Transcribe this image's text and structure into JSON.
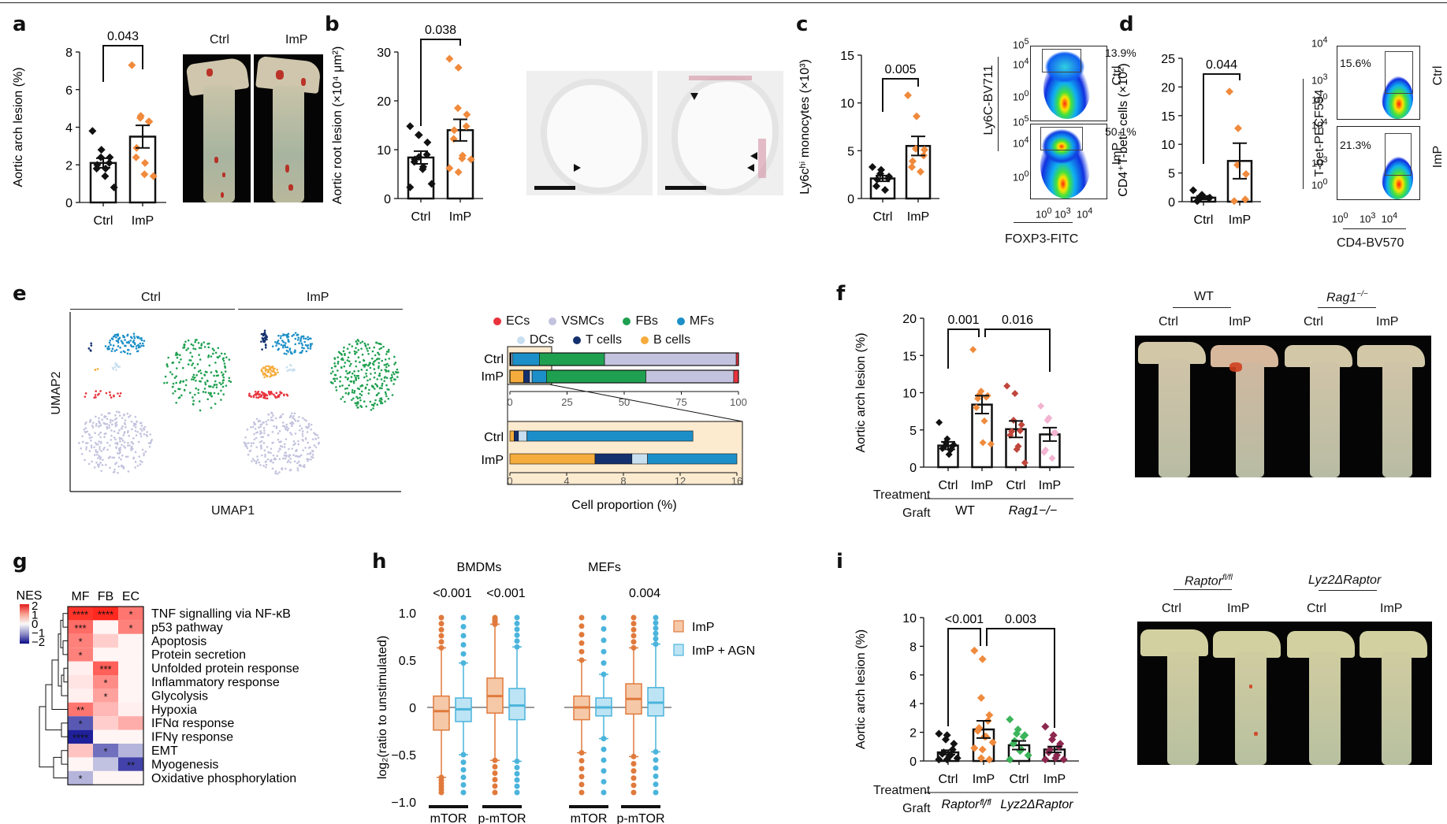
{
  "figure": {
    "panels": [
      "a",
      "b",
      "c",
      "d",
      "e",
      "f",
      "g",
      "h",
      "i"
    ]
  },
  "panel_a": {
    "label": "a",
    "photo_labels": [
      "Ctrl",
      "ImP"
    ]
  },
  "panel_b": {
    "label": "b"
  },
  "panel_c": {
    "label": "c",
    "flow": {
      "y_axis": "Ly6C-BV711",
      "x_axis": "FOXP3-FITC",
      "y_ticks": [
        "10^5",
        "10^4",
        "10^0"
      ],
      "x_ticks": [
        "10^0",
        "10^3",
        "10^4"
      ],
      "rows": [
        {
          "group": "Ctrl",
          "gate_pct": "13.9%"
        },
        {
          "group": "ImP",
          "gate_pct": "50.1%"
        }
      ]
    }
  },
  "panel_d": {
    "label": "d",
    "flow": {
      "y_axis": "T-bet-PECF594",
      "x_axis": "CD4-BV570",
      "y_ticks": [
        "10^4",
        "10^3",
        "10^0"
      ],
      "x_ticks": [
        "10^0",
        "10^3",
        "10^4"
      ],
      "rows": [
        {
          "group": "Ctrl",
          "gate_pct": "15.6%"
        },
        {
          "group": "ImP",
          "gate_pct": "21.3%"
        }
      ]
    }
  },
  "panel_e": {
    "label": "e",
    "umap_groups": [
      "Ctrl",
      "ImP"
    ],
    "umap_xlabel": "UMAP1",
    "umap_ylabel": "UMAP2",
    "legend": [
      {
        "name": "ECs",
        "color": "#e8323c"
      },
      {
        "name": "VSMCs",
        "color": "#c3c3df"
      },
      {
        "name": "FBs",
        "color": "#1fa050"
      },
      {
        "name": "MFs",
        "color": "#1c8fc8"
      },
      {
        "name": "DCs",
        "color": "#c8dff0"
      },
      {
        "name": "T cells",
        "color": "#14306e"
      },
      {
        "name": "B cells",
        "color": "#f5ac3c"
      }
    ]
  },
  "panel_f": {
    "label": "f",
    "row_labels": {
      "treatment": "Treatment",
      "graft": "Graft"
    },
    "photo_groups": [
      {
        "name": "WT",
        "italic": false,
        "sup": ""
      },
      {
        "name": "Rag1",
        "italic": true,
        "sup": "−/−"
      }
    ],
    "photo_labels": [
      "Ctrl",
      "ImP",
      "Ctrl",
      "ImP"
    ]
  },
  "panel_g": {
    "label": "g"
  },
  "panel_h": {
    "label": "h"
  },
  "panel_i": {
    "label": "i",
    "row_labels": {
      "treatment": "Treatment",
      "graft": "Graft"
    },
    "photo_groups": [
      {
        "name": "Raptor",
        "sup": "fl/fl"
      },
      {
        "name": "Lyz2ΔRaptor",
        "sup": ""
      }
    ],
    "photo_labels": [
      "Ctrl",
      "ImP",
      "Ctrl",
      "ImP"
    ]
  },
  "chart_data": [
    {
      "id": "a",
      "type": "bar",
      "ylabel": "Aortic arch lesion (%)",
      "ylim": [
        0,
        8
      ],
      "yticks": [
        0,
        2,
        4,
        6,
        8
      ],
      "categories": [
        "Ctrl",
        "ImP"
      ],
      "values": [
        2.1,
        3.5
      ],
      "sem": [
        0.25,
        0.6
      ],
      "points": [
        [
          3.8,
          2.8,
          2.4,
          2.4,
          2.1,
          2.0,
          1.8,
          1.8,
          1.4,
          0.8
        ],
        [
          7.3,
          4.6,
          4.5,
          4.3,
          4.3,
          2.9,
          2.4,
          2.1,
          1.5,
          1.4
        ]
      ],
      "point_colors": [
        "#111111",
        "#f08a3c"
      ],
      "comparisons": [
        {
          "from": "Ctrl",
          "to": "ImP",
          "p": "0.043"
        }
      ]
    },
    {
      "id": "b",
      "type": "bar",
      "ylabel": "Aortic root lesion (×10⁴ μm²)",
      "ylim": [
        0,
        30
      ],
      "yticks": [
        0,
        10,
        20,
        30
      ],
      "categories": [
        "Ctrl",
        "ImP"
      ],
      "values": [
        8.4,
        14.0
      ],
      "sem": [
        1.3,
        2.2
      ],
      "points": [
        [
          14.8,
          13.0,
          13.0,
          11.5,
          9.0,
          8.0,
          7.5,
          6.5,
          6.0,
          3.0,
          2.3,
          8.5
        ],
        [
          28.6,
          26.8,
          18.5,
          17.2,
          14.8,
          14.0,
          12.2,
          8.8,
          8.2,
          8.0,
          6.2,
          5.4
        ]
      ],
      "point_colors": [
        "#111111",
        "#f08a3c"
      ],
      "comparisons": [
        {
          "from": "Ctrl",
          "to": "ImP",
          "p": "0.038"
        }
      ]
    },
    {
      "id": "c",
      "type": "bar",
      "ylabel": "Ly6c^hi monocytes (×10³)",
      "ylim": [
        0,
        15
      ],
      "yticks": [
        0,
        5,
        10,
        15
      ],
      "categories": [
        "Ctrl",
        "ImP"
      ],
      "values": [
        2.1,
        5.5
      ],
      "sem": [
        0.3,
        1.0
      ],
      "points": [
        [
          3.3,
          3.0,
          2.6,
          2.3,
          2.1,
          2.0,
          1.3,
          0.9
        ],
        [
          10.8,
          8.6,
          5.2,
          5.1,
          4.5,
          3.9,
          3.3,
          2.8
        ]
      ],
      "point_colors": [
        "#111111",
        "#f08a3c"
      ],
      "comparisons": [
        {
          "from": "Ctrl",
          "to": "ImP",
          "p": "0.005"
        }
      ]
    },
    {
      "id": "d",
      "type": "bar",
      "ylabel": "CD4⁺T-bet⁺ cells (×10²)",
      "ylim": [
        0,
        25
      ],
      "yticks": [
        0,
        5,
        10,
        15,
        20,
        25
      ],
      "categories": [
        "Ctrl",
        "ImP"
      ],
      "values": [
        0.7,
        7.1
      ],
      "sem": [
        0.3,
        3.1
      ],
      "points": [
        [
          2.0,
          1.2,
          0.9,
          0.7,
          0.6,
          0.2,
          0.1
        ],
        [
          19.2,
          12.8,
          6.4,
          4.8,
          0.4,
          0.1
        ]
      ],
      "point_colors": [
        "#111111",
        "#f08a3c"
      ],
      "comparisons": [
        {
          "from": "Ctrl",
          "to": "ImP",
          "p": "0.044"
        }
      ]
    },
    {
      "id": "e",
      "type": "bar",
      "stacked": true,
      "xlabel": "Cell proportion (%)",
      "categories": [
        "Ctrl",
        "ImP"
      ],
      "series": [
        {
          "name": "B cells",
          "color": "#f5ac3c",
          "values": [
            0.3,
            6.0
          ]
        },
        {
          "name": "T cells",
          "color": "#14306e",
          "values": [
            0.3,
            2.6
          ]
        },
        {
          "name": "DCs",
          "color": "#c8dff0",
          "values": [
            0.6,
            1.1
          ]
        },
        {
          "name": "MFs",
          "color": "#1c8fc8",
          "values": [
            11.7,
            6.3
          ]
        },
        {
          "name": "FBs",
          "color": "#1fa050",
          "values": [
            28.5,
            43.5
          ]
        },
        {
          "name": "VSMCs",
          "color": "#c3c3df",
          "values": [
            57.6,
            38.4
          ]
        },
        {
          "name": "ECs",
          "color": "#e8323c",
          "values": [
            1.0,
            2.1
          ]
        }
      ],
      "main_axis": {
        "xlim": [
          0,
          100
        ],
        "xticks": [
          0,
          25,
          50,
          75,
          100
        ]
      },
      "inset_axis": {
        "xlim": [
          0,
          16
        ],
        "xticks": [
          0,
          4,
          8,
          12,
          16
        ],
        "series_shown": [
          "B cells",
          "T cells",
          "DCs",
          "MFs"
        ]
      }
    },
    {
      "id": "f",
      "type": "bar",
      "ylabel": "Aortic arch lesion (%)",
      "ylim": [
        0,
        20
      ],
      "yticks": [
        0,
        5,
        10,
        15,
        20
      ],
      "categories": [
        "Ctrl",
        "ImP",
        "Ctrl",
        "ImP"
      ],
      "groups": [
        {
          "name": "WT",
          "span": [
            0,
            1
          ]
        },
        {
          "name": "Rag1−/−",
          "span": [
            2,
            3
          ]
        }
      ],
      "values": [
        2.9,
        8.4,
        5.1,
        4.4
      ],
      "sem": [
        0.5,
        1.2,
        1.1,
        0.9
      ],
      "points": [
        [
          6.0,
          3.8,
          3.3,
          3.0,
          2.8,
          2.7,
          2.5,
          2.3,
          1.7
        ],
        [
          15.8,
          10.2,
          9.8,
          9.6,
          9.4,
          9.2,
          8.0,
          6.2,
          3.3,
          3.1
        ],
        [
          10.9,
          9.9,
          6.3,
          5.7,
          4.9,
          4.8,
          4.3,
          2.8,
          2.4,
          0.6
        ],
        [
          8.2,
          6.6,
          6.3,
          4.6,
          4.6,
          2.3,
          2.0,
          1.2
        ]
      ],
      "point_colors": [
        "#111111",
        "#f08a3c",
        "#c0463c",
        "#f2b4d0"
      ],
      "comparisons": [
        {
          "from": 1,
          "to": 0,
          "p": "0.001"
        },
        {
          "from": 1,
          "to": 3,
          "p": "0.016"
        }
      ]
    },
    {
      "id": "g",
      "type": "heatmap",
      "colorbar_label": "NES",
      "colorbar_ticks": [
        2,
        1,
        0,
        -1,
        -2
      ],
      "columns": [
        "MF",
        "FB",
        "EC"
      ],
      "rows": [
        "TNF signalling via NF-κB",
        "p53 pathway",
        "Apoptosis",
        "Protein secretion",
        "Unfolded protein response",
        "Inflammatory response",
        "Glycolysis",
        "Hypoxia",
        "IFNα response",
        "IFNγ response",
        "EMT",
        "Myogenesis",
        "Oxidative phosphorylation"
      ],
      "values": [
        [
          1.8,
          1.9,
          1.2
        ],
        [
          1.3,
          0.05,
          1.1
        ],
        [
          1.1,
          0.4,
          0.05
        ],
        [
          1.1,
          0.05,
          0.05
        ],
        [
          0.1,
          1.4,
          0.05
        ],
        [
          0.2,
          1.0,
          0.05
        ],
        [
          0.1,
          0.8,
          0.05
        ],
        [
          1.2,
          0.6,
          0.1
        ],
        [
          -1.4,
          0.4,
          0.7
        ],
        [
          -1.9,
          0.05,
          0.05
        ],
        [
          0.5,
          -1.2,
          -0.6
        ],
        [
          0.05,
          -0.5,
          -1.6
        ],
        [
          -0.6,
          0.05,
          0.05
        ]
      ],
      "stars": [
        [
          "****",
          "****",
          "*"
        ],
        [
          "***",
          "",
          "*"
        ],
        [
          "*",
          "",
          ""
        ],
        [
          "*",
          "",
          ""
        ],
        [
          "",
          "***",
          ""
        ],
        [
          "",
          "*",
          ""
        ],
        [
          "",
          "*",
          ""
        ],
        [
          "**",
          "",
          ""
        ],
        [
          "*",
          "",
          ""
        ],
        [
          "****",
          "",
          ""
        ],
        [
          "",
          "*",
          ""
        ],
        [
          "",
          "",
          "**"
        ],
        [
          "*",
          "",
          ""
        ]
      ]
    },
    {
      "id": "h",
      "type": "box",
      "ylabel": "log₂(ratio to unstimulated)",
      "ylim": [
        -1.0,
        1.0
      ],
      "yticks": [
        -1.0,
        -0.5,
        0,
        0.5,
        1.0
      ],
      "panels": [
        {
          "title": "BMDMs",
          "groups": [
            {
              "name": "mTOR",
              "p": "<0.001",
              "boxes": [
                {
                  "series": "ImP",
                  "q1": -0.24,
                  "median": -0.04,
                  "q3": 0.12,
                  "whislo": -0.74,
                  "whishi": 0.63
                },
                {
                  "series": "ImP + AGN",
                  "q1": -0.15,
                  "median": -0.02,
                  "q3": 0.1,
                  "whislo": -0.5,
                  "whishi": 0.47
                }
              ]
            },
            {
              "name": "p-mTOR",
              "p": "<0.001",
              "boxes": [
                {
                  "series": "ImP",
                  "q1": -0.06,
                  "median": 0.12,
                  "q3": 0.31,
                  "whislo": -0.56,
                  "whishi": 0.88
                },
                {
                  "series": "ImP + AGN",
                  "q1": -0.13,
                  "median": 0.02,
                  "q3": 0.2,
                  "whislo": -0.57,
                  "whishi": 0.64
                }
              ]
            }
          ]
        },
        {
          "title": "MEFs",
          "groups": [
            {
              "name": "mTOR",
              "p": "",
              "boxes": [
                {
                  "series": "ImP",
                  "q1": -0.13,
                  "median": 0.0,
                  "q3": 0.12,
                  "whislo": -0.48,
                  "whishi": 0.5
                },
                {
                  "series": "ImP + AGN",
                  "q1": -0.09,
                  "median": 0.0,
                  "q3": 0.1,
                  "whislo": -0.33,
                  "whishi": 0.35
                }
              ]
            },
            {
              "name": "p-mTOR",
              "p": "0.004",
              "boxes": [
                {
                  "series": "ImP",
                  "q1": -0.07,
                  "median": 0.09,
                  "q3": 0.25,
                  "whislo": -0.52,
                  "whishi": 0.63
                },
                {
                  "series": "ImP + AGN",
                  "q1": -0.09,
                  "median": 0.05,
                  "q3": 0.21,
                  "whislo": -0.47,
                  "whishi": 0.67
                }
              ]
            }
          ]
        }
      ],
      "legend": [
        {
          "name": "ImP",
          "color": "#e07a3c",
          "fill": "#f5c8a8"
        },
        {
          "name": "ImP + AGN",
          "color": "#4ab4dc",
          "fill": "#bde4f4"
        }
      ]
    },
    {
      "id": "i",
      "type": "bar",
      "ylabel": "Aortic arch lesion (%)",
      "ylim": [
        0,
        10
      ],
      "yticks": [
        0,
        2,
        4,
        6,
        8,
        10
      ],
      "categories": [
        "Ctrl",
        "ImP",
        "Ctrl",
        "ImP"
      ],
      "groups": [
        {
          "name": "Raptor fl/fl",
          "span": [
            0,
            1
          ]
        },
        {
          "name": "Lyz2ΔRaptor",
          "span": [
            2,
            3
          ]
        }
      ],
      "values": [
        0.6,
        2.2,
        1.1,
        0.8
      ],
      "sem": [
        0.15,
        0.6,
        0.3,
        0.2
      ],
      "points": [
        [
          1.9,
          1.8,
          1.5,
          1.2,
          0.8,
          0.6,
          0.5,
          0.4,
          0.3,
          0.2,
          0.1,
          0.1
        ],
        [
          7.7,
          7.1,
          4.4,
          3.2,
          2.8,
          2.3,
          2.1,
          1.7,
          1.7,
          1.3,
          0.9,
          0.8,
          0.2,
          0.1
        ],
        [
          2.9,
          2.2,
          1.9,
          1.8,
          1.7,
          1.4,
          1.2,
          0.8,
          0.7,
          0.4,
          0.1
        ],
        [
          2.4,
          1.8,
          1.5,
          1.2,
          1.0,
          0.8,
          0.6,
          0.4,
          0.2,
          0.1,
          0.1
        ]
      ],
      "point_colors": [
        "#111111",
        "#f08a3c",
        "#3cb45a",
        "#8c2850"
      ],
      "comparisons": [
        {
          "from": 1,
          "to": 0,
          "p": "<0.001"
        },
        {
          "from": 1,
          "to": 3,
          "p": "0.003"
        }
      ]
    }
  ]
}
